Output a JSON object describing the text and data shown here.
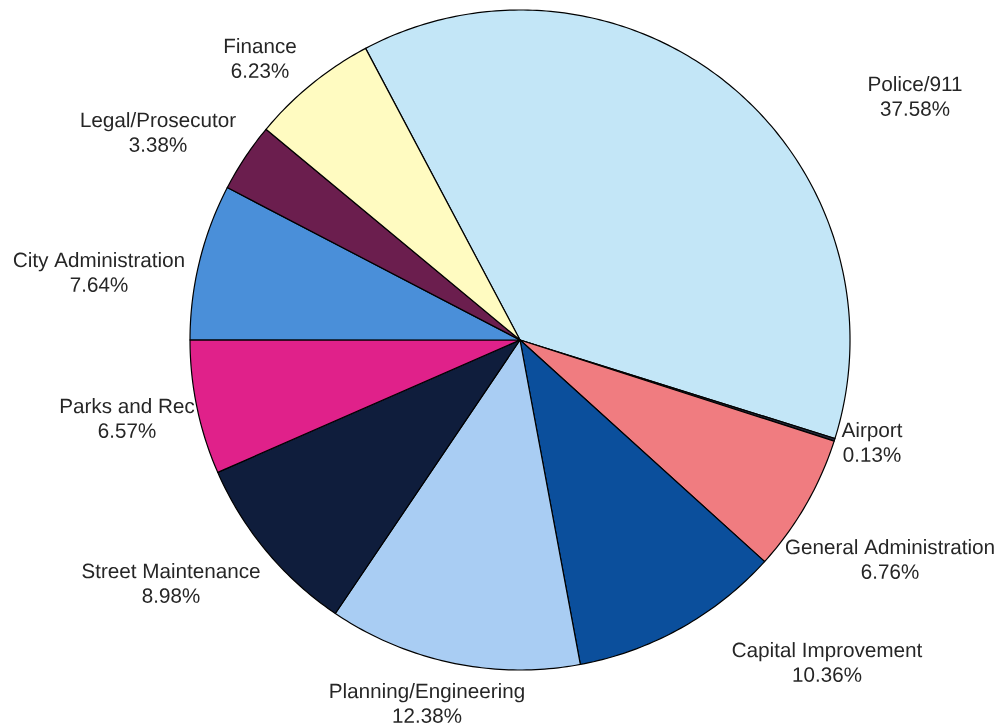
{
  "chart_data": {
    "type": "pie",
    "categories": [
      "Police/911",
      "Airport",
      "General Administration",
      "Capital Improvement",
      "Planning/Engineering",
      "Street Maintenance",
      "Parks and Rec",
      "City Administration",
      "Legal/Prosecutor",
      "Finance"
    ],
    "values": [
      37.58,
      0.13,
      6.76,
      10.36,
      12.38,
      8.98,
      6.57,
      7.64,
      3.38,
      6.23
    ],
    "colors": [
      "#c3e6f7",
      "#23283a",
      "#f07c80",
      "#0b4f9c",
      "#a9cdf3",
      "#0f1d3c",
      "#e0218a",
      "#4a8fd9",
      "#6b1e4e",
      "#fffbc1"
    ],
    "value_labels": [
      "37.58%",
      "0.13%",
      "6.76%",
      "10.36%",
      "12.38%",
      "8.98%",
      "6.57%",
      "7.64%",
      "3.38%",
      "6.23%"
    ]
  }
}
